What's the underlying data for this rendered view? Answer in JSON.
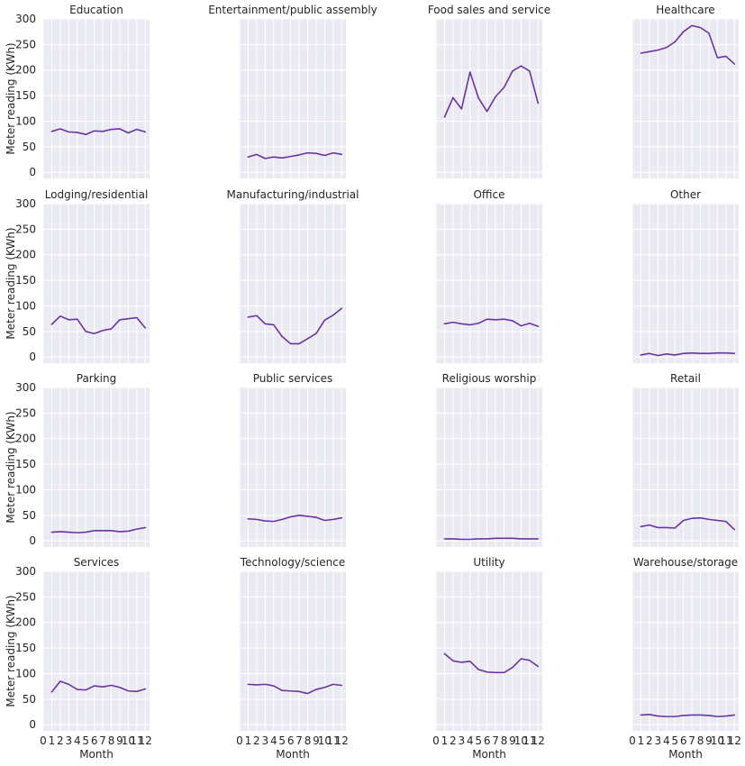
{
  "chart_data": {
    "type": "line",
    "layout": "facet-grid",
    "xlabel": "Month",
    "ylabel": "Meter reading (KWh)",
    "x": [
      1,
      2,
      3,
      4,
      5,
      6,
      7,
      8,
      9,
      10,
      11,
      12
    ],
    "x_ticks": [
      "0",
      "1",
      "2",
      "3",
      "4",
      "5",
      "6",
      "7",
      "8",
      "9",
      "10",
      "11",
      "12"
    ],
    "xlim": [
      0,
      12.5
    ],
    "ylim": [
      -12,
      300
    ],
    "y_ticks": [
      0,
      50,
      100,
      150,
      200,
      250,
      300
    ],
    "grid": true,
    "line_color": "#6a33a6",
    "panels": [
      {
        "title": "Education",
        "values": [
          80,
          85,
          79,
          78,
          74,
          81,
          80,
          84,
          85,
          77,
          84,
          79
        ]
      },
      {
        "title": "Entertainment/public assembly",
        "values": [
          30,
          35,
          27,
          30,
          28,
          31,
          34,
          38,
          37,
          33,
          38,
          35
        ]
      },
      {
        "title": "Food sales and service",
        "values": [
          108,
          146,
          124,
          196,
          145,
          119,
          148,
          166,
          198,
          208,
          198,
          135
        ]
      },
      {
        "title": "Healthcare",
        "values": [
          233,
          236,
          239,
          244,
          255,
          275,
          287,
          283,
          272,
          224,
          227,
          212
        ]
      },
      {
        "title": "Lodging/residential",
        "values": [
          64,
          80,
          73,
          74,
          50,
          46,
          52,
          55,
          73,
          75,
          77,
          57
        ]
      },
      {
        "title": "Manufacturing/industrial",
        "values": [
          78,
          81,
          65,
          63,
          40,
          26,
          26,
          36,
          46,
          72,
          82,
          95
        ]
      },
      {
        "title": "Office",
        "values": [
          65,
          68,
          65,
          63,
          66,
          74,
          73,
          74,
          71,
          61,
          66,
          60
        ]
      },
      {
        "title": "Other",
        "values": [
          4,
          7,
          3,
          6,
          4,
          7,
          8,
          7,
          7,
          8,
          8,
          7
        ]
      },
      {
        "title": "Parking",
        "values": [
          17,
          18,
          17,
          16,
          17,
          20,
          20,
          20,
          18,
          19,
          23,
          26
        ]
      },
      {
        "title": "Public services",
        "values": [
          43,
          42,
          39,
          38,
          42,
          47,
          50,
          48,
          46,
          40,
          42,
          45
        ]
      },
      {
        "title": "Religious worship",
        "values": [
          4,
          4,
          3,
          3,
          4,
          4,
          5,
          5,
          5,
          4,
          4,
          4
        ]
      },
      {
        "title": "Retail",
        "values": [
          28,
          31,
          26,
          26,
          25,
          40,
          44,
          45,
          42,
          40,
          38,
          22
        ]
      },
      {
        "title": "Services",
        "values": [
          64,
          85,
          79,
          69,
          68,
          76,
          74,
          77,
          73,
          66,
          65,
          70
        ]
      },
      {
        "title": "Technology/science",
        "values": [
          79,
          78,
          79,
          76,
          67,
          66,
          65,
          61,
          69,
          73,
          79,
          77
        ]
      },
      {
        "title": "Utility",
        "values": [
          139,
          125,
          122,
          124,
          108,
          103,
          102,
          102,
          112,
          129,
          126,
          114
        ]
      },
      {
        "title": "Warehouse/storage",
        "values": [
          19,
          20,
          17,
          16,
          16,
          18,
          19,
          19,
          18,
          16,
          17,
          19
        ]
      }
    ]
  }
}
